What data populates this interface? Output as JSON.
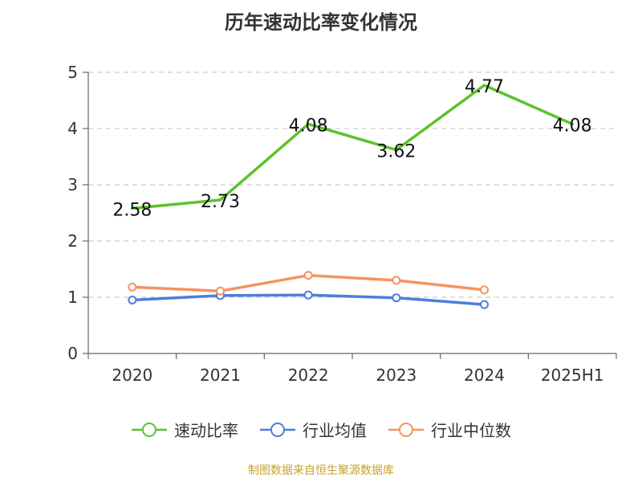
{
  "title": "历年速动比率变化情况",
  "source": "制图数据来自恒生聚源数据库",
  "colors": {
    "axis": "#666666",
    "grid": "#cccccc",
    "text": "#333333"
  },
  "chart_data": {
    "type": "line",
    "title": "历年速动比率变化情况",
    "categories": [
      "2020",
      "2021",
      "2022",
      "2023",
      "2024",
      "2025H1"
    ],
    "ylim": [
      0,
      5
    ],
    "yticks": [
      0,
      1,
      2,
      3,
      4,
      5
    ],
    "grid": "horizontal-dashed",
    "legend_position": "bottom",
    "series": [
      {
        "name": "速动比率",
        "color": "#5cc22a",
        "marker": "none",
        "values": [
          2.58,
          2.73,
          4.08,
          3.62,
          4.77,
          4.08
        ],
        "labels": [
          "2.58",
          "2.73",
          "4.08",
          "3.62",
          "4.77",
          "4.08"
        ]
      },
      {
        "name": "行业均值",
        "color": "#4d7fd9",
        "marker": "hollow-circle",
        "values": [
          0.95,
          1.03,
          1.04,
          0.99,
          0.87,
          null
        ]
      },
      {
        "name": "行业中位数",
        "color": "#f5935e",
        "marker": "hollow-circle",
        "values": [
          1.18,
          1.11,
          1.39,
          1.3,
          1.13,
          null
        ]
      }
    ]
  }
}
